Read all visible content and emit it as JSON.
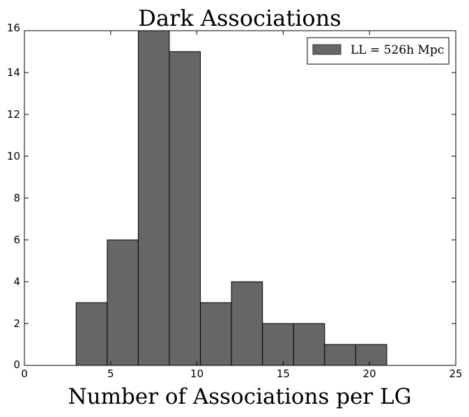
{
  "chart_data": {
    "type": "bar",
    "title": "Dark Associations",
    "xlabel": "Number of Associations per LG",
    "ylabel": "",
    "xlim": [
      0,
      25
    ],
    "ylim": [
      0,
      16
    ],
    "xticks": [
      "0",
      "5",
      "10",
      "15",
      "20",
      "25"
    ],
    "yticks": [
      "0",
      "2",
      "4",
      "6",
      "8",
      "10",
      "12",
      "14",
      "16"
    ],
    "bin_edges": [
      3.0,
      4.8,
      6.6,
      8.4,
      10.2,
      12.0,
      13.8,
      15.6,
      17.4,
      19.2,
      21.0
    ],
    "values": [
      3,
      6,
      16,
      15,
      3,
      4,
      2,
      2,
      1,
      1
    ],
    "series": [
      {
        "name": "LL = 526h Mpc",
        "color": "#666666"
      }
    ],
    "legend_position": "top-right",
    "grid": false
  }
}
